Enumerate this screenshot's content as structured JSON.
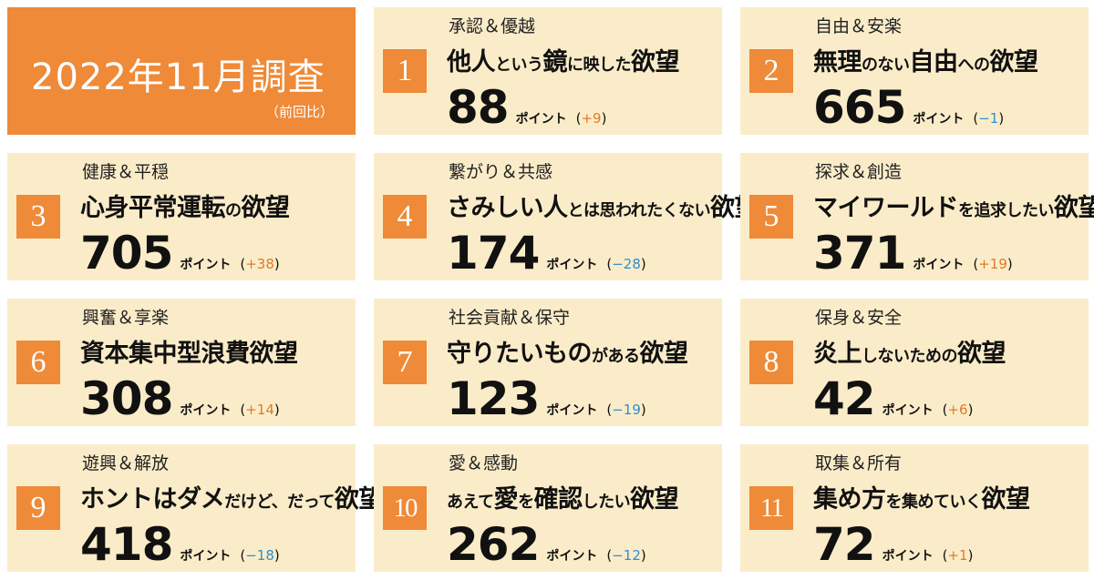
{
  "header": {
    "title": "2022年11月調査",
    "subtitle": "（前回比）",
    "color": "#ee8a38"
  },
  "unit_label": "ポイント",
  "colors": {
    "card_bg": "#fbecc9",
    "accent_orange": "#ee8a38",
    "delta_up": "#e07a2a",
    "delta_down": "#2e8fd0"
  },
  "cards": [
    {
      "rank": "1",
      "category": "承認＆優越",
      "title_parts": [
        {
          "text": "他人",
          "small": false
        },
        {
          "text": "という",
          "small": true
        },
        {
          "text": "鏡",
          "small": false
        },
        {
          "text": "に映した",
          "small": true
        },
        {
          "text": "欲望",
          "small": false
        }
      ],
      "score": "88",
      "delta": "+9",
      "direction": "up"
    },
    {
      "rank": "2",
      "category": "自由＆安楽",
      "title_parts": [
        {
          "text": "無理",
          "small": false
        },
        {
          "text": "のない",
          "small": true
        },
        {
          "text": "自由",
          "small": false
        },
        {
          "text": "への",
          "small": true
        },
        {
          "text": "欲望",
          "small": false
        }
      ],
      "score": "665",
      "delta": "−1",
      "direction": "down"
    },
    {
      "rank": "3",
      "category": "健康＆平穏",
      "title_parts": [
        {
          "text": "心身平常運転",
          "small": false
        },
        {
          "text": "の",
          "small": true
        },
        {
          "text": "欲望",
          "small": false
        }
      ],
      "score": "705",
      "delta": "+38",
      "direction": "up"
    },
    {
      "rank": "4",
      "category": "繋がり＆共感",
      "title_parts": [
        {
          "text": "さみしい人",
          "small": false
        },
        {
          "text": "とは思われたくない",
          "small": true
        },
        {
          "text": "欲望",
          "small": false
        }
      ],
      "score": "174",
      "delta": "−28",
      "direction": "down"
    },
    {
      "rank": "5",
      "category": "探求＆創造",
      "title_parts": [
        {
          "text": "マイワールド",
          "small": false
        },
        {
          "text": "を追求したい",
          "small": true
        },
        {
          "text": "欲望",
          "small": false
        }
      ],
      "score": "371",
      "delta": "+19",
      "direction": "up"
    },
    {
      "rank": "6",
      "category": "興奮＆享楽",
      "title_parts": [
        {
          "text": "資本集中型浪費欲望",
          "small": false
        }
      ],
      "score": "308",
      "delta": "+14",
      "direction": "up"
    },
    {
      "rank": "7",
      "category": "社会貢献＆保守",
      "title_parts": [
        {
          "text": "守りたいもの",
          "small": false
        },
        {
          "text": "がある",
          "small": true
        },
        {
          "text": "欲望",
          "small": false
        }
      ],
      "score": "123",
      "delta": "−19",
      "direction": "down"
    },
    {
      "rank": "8",
      "category": "保身＆安全",
      "title_parts": [
        {
          "text": "炎上",
          "small": false
        },
        {
          "text": "しないための",
          "small": true
        },
        {
          "text": "欲望",
          "small": false
        }
      ],
      "score": "42",
      "delta": "+6",
      "direction": "up"
    },
    {
      "rank": "9",
      "category": "遊興＆解放",
      "title_parts": [
        {
          "text": "ホントはダメ",
          "small": false
        },
        {
          "text": "だけど、だって",
          "small": true
        },
        {
          "text": "欲望",
          "small": false
        }
      ],
      "score": "418",
      "delta": "−18",
      "direction": "down"
    },
    {
      "rank": "10",
      "category": "愛＆感動",
      "title_parts": [
        {
          "text": "あえて",
          "small": true
        },
        {
          "text": "愛",
          "small": false
        },
        {
          "text": "を",
          "small": true
        },
        {
          "text": "確認",
          "small": false
        },
        {
          "text": "したい",
          "small": true
        },
        {
          "text": "欲望",
          "small": false
        }
      ],
      "score": "262",
      "delta": "−12",
      "direction": "down"
    },
    {
      "rank": "11",
      "category": "取集＆所有",
      "title_parts": [
        {
          "text": "集め方",
          "small": false
        },
        {
          "text": "を集めていく",
          "small": true
        },
        {
          "text": "欲望",
          "small": false
        }
      ],
      "score": "72",
      "delta": "+1",
      "direction": "up"
    }
  ]
}
